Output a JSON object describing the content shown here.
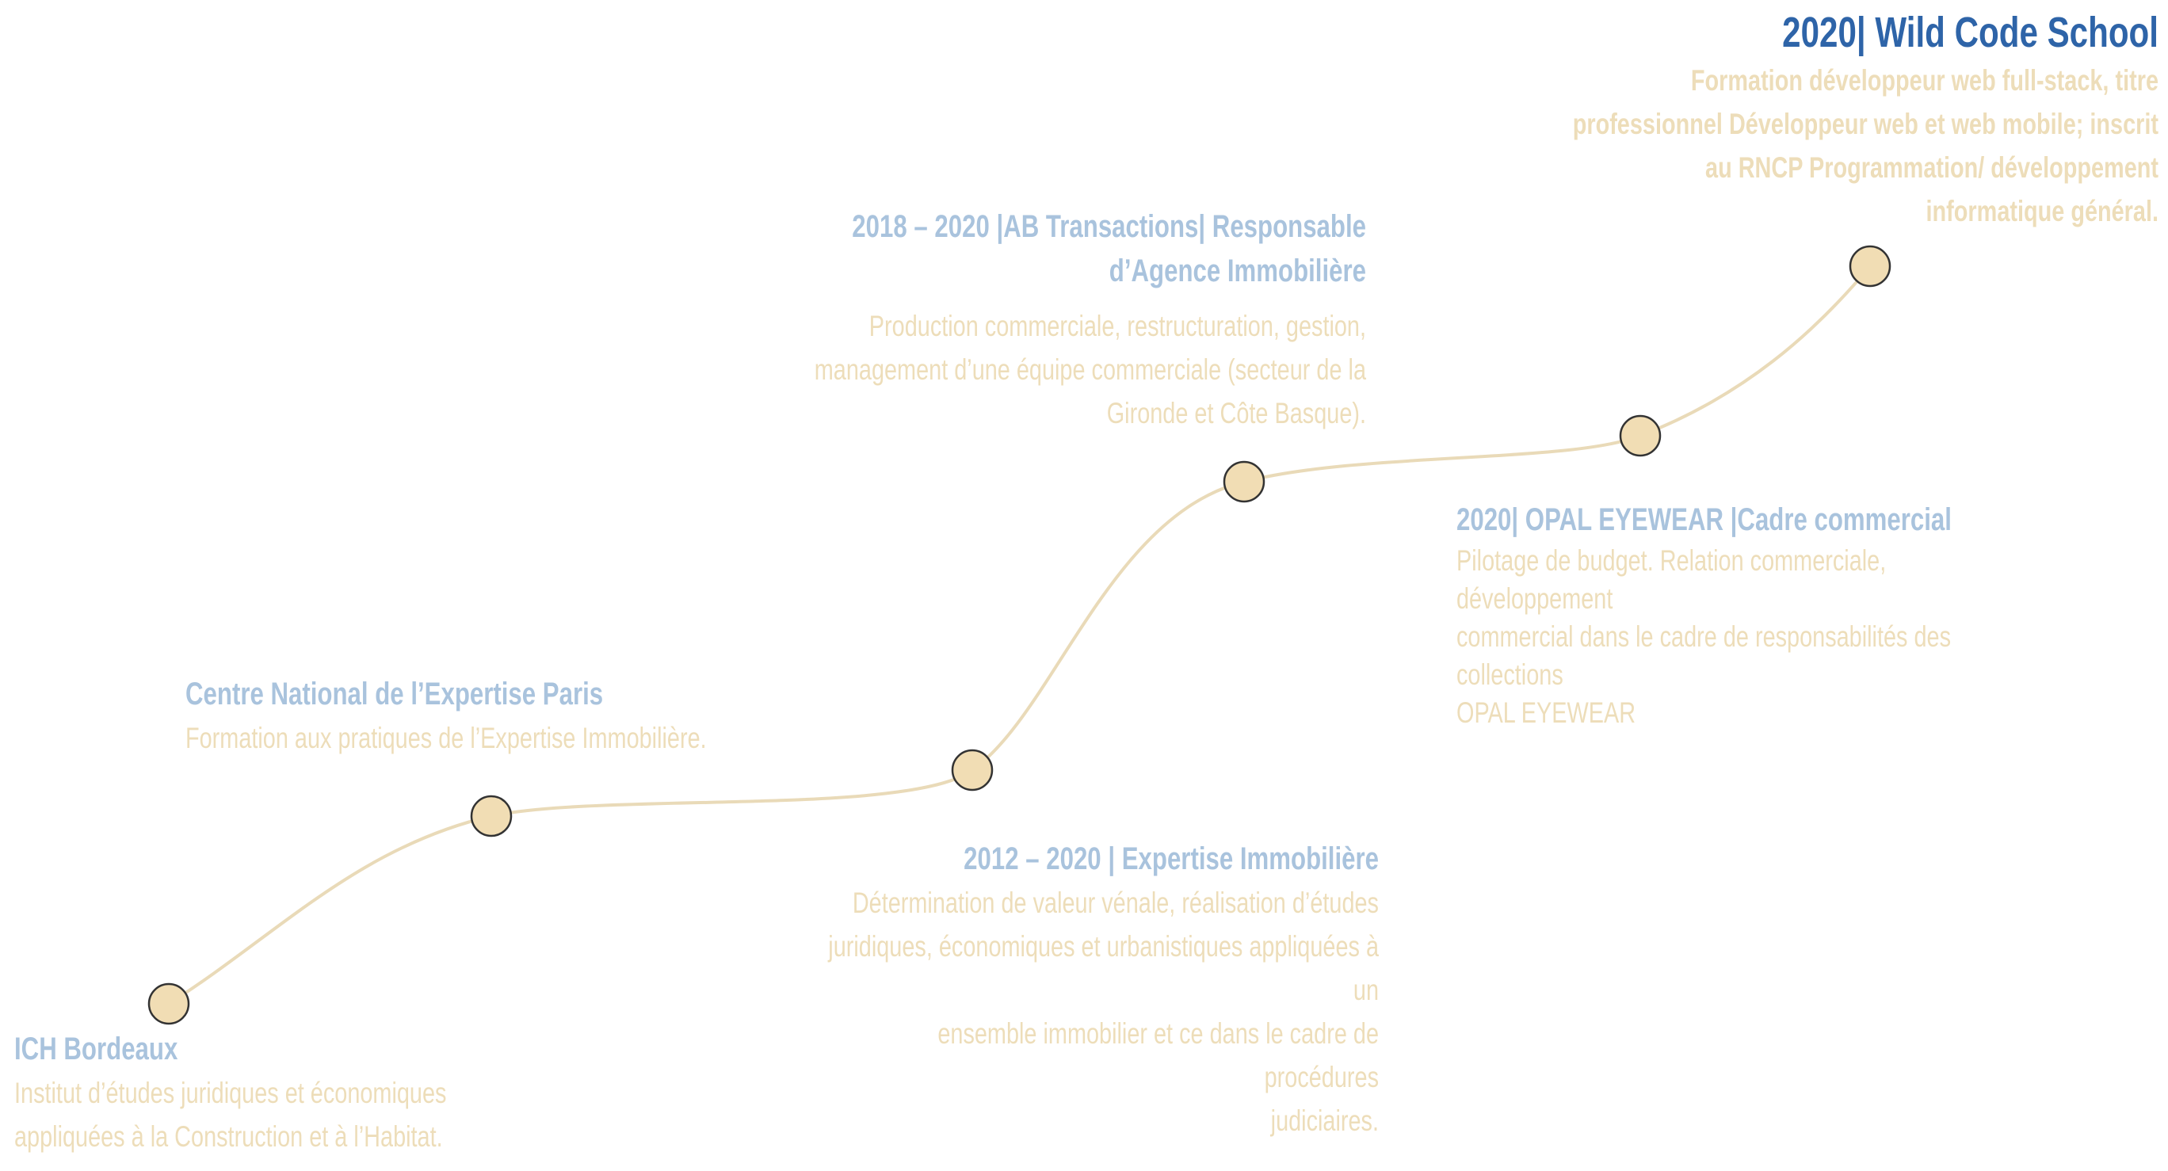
{
  "colors": {
    "heading": "#A9C3DD",
    "heading_featured": "#2E64A8",
    "body": "#EDDDB9",
    "path": "#E9DAB8",
    "node_fill": "#F1DDB4",
    "node_stroke": "#333333"
  },
  "milestones": [
    {
      "title": "2020| Wild Code School",
      "description": [
        "Formation développeur web full-stack, titre",
        "professionnel Développeur web et web mobile; inscrit",
        "au RNCP Programmation/ développement",
        "informatique général."
      ]
    },
    {
      "title": "2018 – 2020 |AB Transactions| Responsable d’Agence Immobilière",
      "description": [
        "Production commerciale, restructuration, gestion,",
        "management d’une équipe commerciale (secteur de la",
        "Gironde et Côte Basque)."
      ]
    },
    {
      "title": "2020| OPAL EYEWEAR |Cadre commercial",
      "description": [
        "Pilotage de budget. Relation commerciale, développement",
        "commercial dans le cadre de responsabilités des collections",
        "OPAL EYEWEAR"
      ]
    },
    {
      "title": "Centre National de l’Expertise Paris",
      "description": [
        "Formation aux pratiques de l’Expertise Immobilière."
      ]
    },
    {
      "title": "2012 – 2020 | Expertise Immobilière",
      "description": [
        "Détermination de valeur vénale, réalisation d’études",
        "juridiques, économiques et urbanistiques appliquées à un",
        "ensemble immobilier et ce dans le cadre de procédures",
        "judiciaires."
      ]
    },
    {
      "title": "ICH Bordeaux",
      "description": [
        "Institut d’études juridiques et économiques",
        "appliquées à la Construction et à l’Habitat."
      ]
    }
  ]
}
